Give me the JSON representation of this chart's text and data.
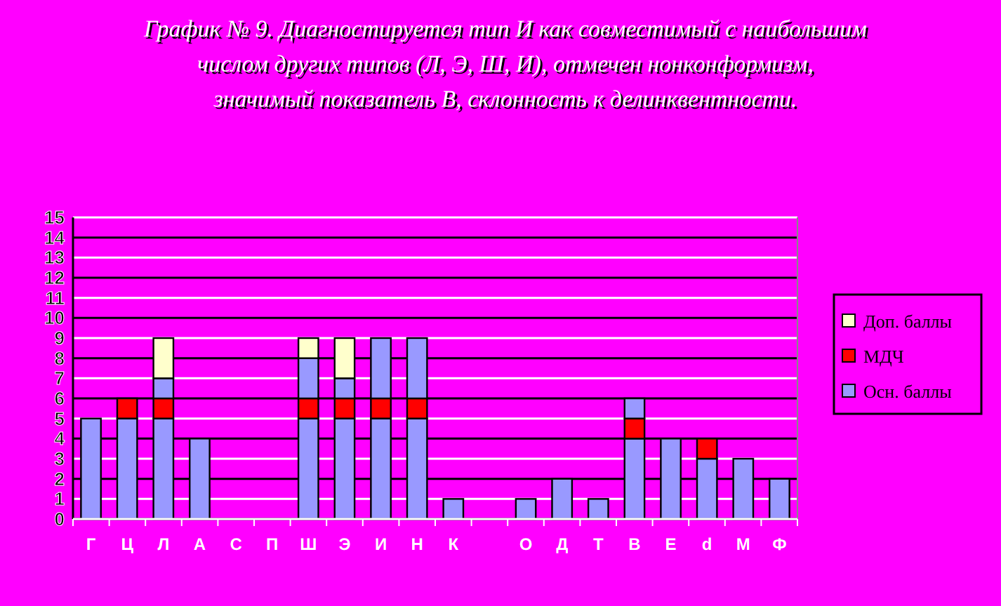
{
  "chart_data": {
    "type": "bar",
    "stacked": true,
    "title": "График № 9. Диагностируется тип  И  как  совместимый с наибольшим числом других  типов (Л, Э, Ш, И), отмечен нонконформизм, значимый показатель В, склонность к делинквентности.",
    "categories": [
      "Г",
      "Ц",
      "Л",
      "А",
      "С",
      "П",
      "Ш",
      "Э",
      "И",
      "Н",
      "К",
      null,
      "О",
      "Д",
      "Т",
      "В",
      "Е",
      "d",
      "М",
      "Ф"
    ],
    "series": [
      {
        "name": "Осн. баллы",
        "color": "#9999ff",
        "values": [
          5,
          5,
          5,
          4,
          0,
          0,
          5,
          5,
          5,
          5,
          1,
          0,
          1,
          2,
          1,
          4,
          4,
          3,
          3,
          2
        ]
      },
      {
        "name": "МДЧ",
        "color": "#ff0000",
        "values": [
          0,
          1,
          1,
          0,
          0,
          0,
          1,
          1,
          1,
          1,
          0,
          0,
          0,
          0,
          0,
          1,
          0,
          1,
          0,
          0
        ]
      },
      {
        "color": "#9999ff",
        "values": [
          0,
          0,
          1,
          0,
          0,
          0,
          2,
          1,
          3,
          3,
          0,
          0,
          0,
          0,
          0,
          1,
          0,
          0,
          0,
          0
        ]
      },
      {
        "name": "Доп. баллы",
        "color": "#ffffcc",
        "values": [
          0,
          0,
          2,
          0,
          0,
          0,
          1,
          2,
          0,
          0,
          0,
          0,
          0,
          0,
          0,
          0,
          0,
          0,
          0,
          0
        ]
      }
    ],
    "ylim": [
      0,
      15
    ],
    "yticks": [
      0,
      1,
      2,
      3,
      4,
      5,
      6,
      7,
      8,
      9,
      10,
      11,
      12,
      13,
      14,
      15
    ],
    "grid": "y",
    "legend": "right"
  }
}
